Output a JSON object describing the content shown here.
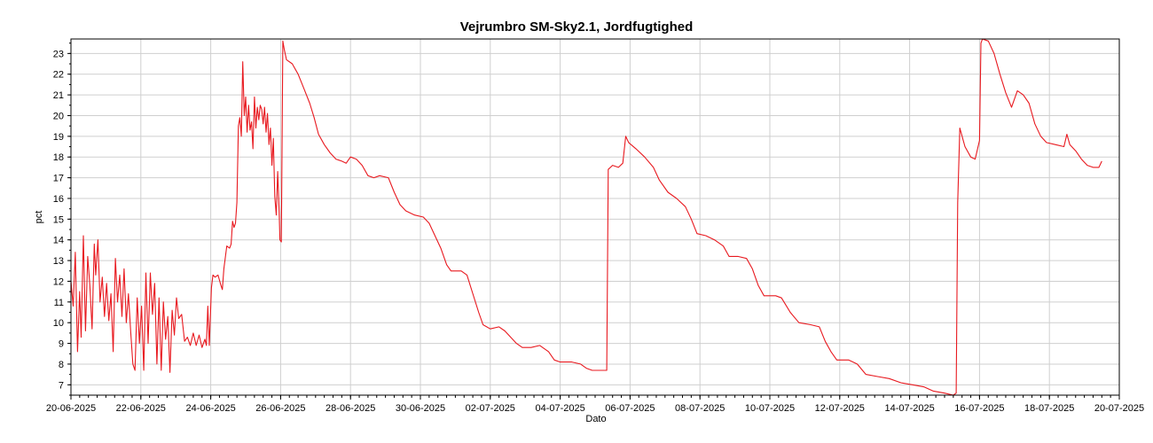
{
  "chart_data": {
    "type": "line",
    "title": "Vejrumbro SM-Sky2.1, Jordfugtighed",
    "xlabel": "Dato",
    "ylabel": "pct",
    "x_tick_labels": [
      "20-06-2025",
      "22-06-2025",
      "24-06-2025",
      "26-06-2025",
      "28-06-2025",
      "30-06-2025",
      "02-07-2025",
      "04-07-2025",
      "06-07-2025",
      "08-07-2025",
      "10-07-2025",
      "12-07-2025",
      "14-07-2025",
      "16-07-2025",
      "18-07-2025",
      "20-07-2025"
    ],
    "y_tick_labels": [
      "7",
      "8",
      "9",
      "10",
      "11",
      "12",
      "13",
      "14",
      "15",
      "16",
      "17",
      "18",
      "19",
      "20",
      "21",
      "22",
      "23"
    ],
    "xlim": [
      "2025-06-20",
      "2025-07-20"
    ],
    "ylim": [
      6.5,
      23.7
    ],
    "grid": true,
    "legend": "none",
    "color": "#e8191f",
    "series": [
      {
        "points": [
          [
            "2025-06-20 00:00",
            12.0
          ],
          [
            "2025-06-20 01:30",
            10.8
          ],
          [
            "2025-06-20 03:00",
            13.4
          ],
          [
            "2025-06-20 04:30",
            8.6
          ],
          [
            "2025-06-20 06:00",
            11.5
          ],
          [
            "2025-06-20 07:00",
            9.3
          ],
          [
            "2025-06-20 08:30",
            14.2
          ],
          [
            "2025-06-20 10:00",
            9.6
          ],
          [
            "2025-06-20 11:30",
            13.2
          ],
          [
            "2025-06-20 13:00",
            11.8
          ],
          [
            "2025-06-20 14:30",
            9.7
          ],
          [
            "2025-06-20 16:00",
            13.8
          ],
          [
            "2025-06-20 17:00",
            12.3
          ],
          [
            "2025-06-20 18:30",
            14.0
          ],
          [
            "2025-06-20 20:00",
            11.0
          ],
          [
            "2025-06-20 21:30",
            12.2
          ],
          [
            "2025-06-20 23:00",
            10.3
          ],
          [
            "2025-06-21 00:30",
            11.9
          ],
          [
            "2025-06-21 02:00",
            10.1
          ],
          [
            "2025-06-21 03:30",
            11.4
          ],
          [
            "2025-06-21 05:00",
            8.6
          ],
          [
            "2025-06-21 06:30",
            13.1
          ],
          [
            "2025-06-21 08:00",
            11.0
          ],
          [
            "2025-06-21 09:30",
            12.3
          ],
          [
            "2025-06-21 11:00",
            10.3
          ],
          [
            "2025-06-21 12:30",
            12.6
          ],
          [
            "2025-06-21 14:00",
            10.0
          ],
          [
            "2025-06-21 15:30",
            11.4
          ],
          [
            "2025-06-21 17:00",
            9.6
          ],
          [
            "2025-06-21 18:30",
            8.0
          ],
          [
            "2025-06-21 20:00",
            7.7
          ],
          [
            "2025-06-21 21:30",
            11.2
          ],
          [
            "2025-06-21 23:00",
            9.0
          ],
          [
            "2025-06-22 00:30",
            10.8
          ],
          [
            "2025-06-22 02:00",
            7.7
          ],
          [
            "2025-06-22 03:30",
            12.4
          ],
          [
            "2025-06-22 05:00",
            9.0
          ],
          [
            "2025-06-22 06:30",
            12.4
          ],
          [
            "2025-06-22 08:00",
            10.4
          ],
          [
            "2025-06-22 09:30",
            11.9
          ],
          [
            "2025-06-22 11:00",
            8.0
          ],
          [
            "2025-06-22 12:30",
            11.2
          ],
          [
            "2025-06-22 14:00",
            7.7
          ],
          [
            "2025-06-22 15:30",
            11.0
          ],
          [
            "2025-06-22 17:00",
            9.2
          ],
          [
            "2025-06-22 18:30",
            10.3
          ],
          [
            "2025-06-22 20:00",
            7.6
          ],
          [
            "2025-06-22 21:30",
            10.6
          ],
          [
            "2025-06-22 23:00",
            9.4
          ],
          [
            "2025-06-23 00:30",
            11.2
          ],
          [
            "2025-06-23 02:00",
            10.2
          ],
          [
            "2025-06-23 04:00",
            10.4
          ],
          [
            "2025-06-23 06:00",
            9.1
          ],
          [
            "2025-06-23 08:00",
            9.3
          ],
          [
            "2025-06-23 10:00",
            8.9
          ],
          [
            "2025-06-23 12:00",
            9.5
          ],
          [
            "2025-06-23 14:00",
            8.9
          ],
          [
            "2025-06-23 16:00",
            9.4
          ],
          [
            "2025-06-23 18:00",
            8.8
          ],
          [
            "2025-06-23 20:00",
            9.2
          ],
          [
            "2025-06-23 21:00",
            8.9
          ],
          [
            "2025-06-23 22:00",
            10.8
          ],
          [
            "2025-06-23 23:00",
            8.9
          ],
          [
            "2025-06-24 00:30",
            11.7
          ],
          [
            "2025-06-24 01:30",
            12.3
          ],
          [
            "2025-06-24 03:00",
            12.2
          ],
          [
            "2025-06-24 05:00",
            12.3
          ],
          [
            "2025-06-24 07:00",
            11.8
          ],
          [
            "2025-06-24 08:00",
            11.6
          ],
          [
            "2025-06-24 09:00",
            12.6
          ],
          [
            "2025-06-24 11:00",
            13.7
          ],
          [
            "2025-06-24 13:00",
            13.6
          ],
          [
            "2025-06-24 14:00",
            13.8
          ],
          [
            "2025-06-24 15:00",
            14.9
          ],
          [
            "2025-06-24 16:00",
            14.6
          ],
          [
            "2025-06-24 17:00",
            14.8
          ],
          [
            "2025-06-24 18:00",
            15.8
          ],
          [
            "2025-06-24 19:00",
            19.5
          ],
          [
            "2025-06-24 20:00",
            19.9
          ],
          [
            "2025-06-24 21:00",
            19.0
          ],
          [
            "2025-06-24 22:00",
            22.6
          ],
          [
            "2025-06-24 23:00",
            20.0
          ],
          [
            "2025-06-25 00:00",
            20.9
          ],
          [
            "2025-06-25 01:00",
            19.2
          ],
          [
            "2025-06-25 02:00",
            20.5
          ],
          [
            "2025-06-25 03:00",
            19.3
          ],
          [
            "2025-06-25 04:00",
            19.7
          ],
          [
            "2025-06-25 05:00",
            18.4
          ],
          [
            "2025-06-25 06:00",
            20.9
          ],
          [
            "2025-06-25 07:00",
            19.4
          ],
          [
            "2025-06-25 08:00",
            20.4
          ],
          [
            "2025-06-25 09:00",
            19.8
          ],
          [
            "2025-06-25 10:00",
            20.5
          ],
          [
            "2025-06-25 11:00",
            20.3
          ],
          [
            "2025-06-25 12:00",
            19.6
          ],
          [
            "2025-06-25 13:00",
            20.4
          ],
          [
            "2025-06-25 14:00",
            19.2
          ],
          [
            "2025-06-25 15:00",
            20.1
          ],
          [
            "2025-06-25 16:00",
            18.6
          ],
          [
            "2025-06-25 17:00",
            19.4
          ],
          [
            "2025-06-25 18:00",
            17.6
          ],
          [
            "2025-06-25 19:00",
            18.9
          ],
          [
            "2025-06-25 20:00",
            16.1
          ],
          [
            "2025-06-25 21:00",
            15.2
          ],
          [
            "2025-06-25 22:00",
            17.3
          ],
          [
            "2025-06-25 23:00",
            15.3
          ],
          [
            "2025-06-25 23:30",
            14.0
          ],
          [
            "2025-06-26 00:30",
            13.9
          ],
          [
            "2025-06-26 01:30",
            23.6
          ],
          [
            "2025-06-26 02:30",
            23.2
          ],
          [
            "2025-06-26 04:00",
            22.7
          ],
          [
            "2025-06-26 08:00",
            22.5
          ],
          [
            "2025-06-26 12:00",
            22.0
          ],
          [
            "2025-06-26 16:00",
            21.3
          ],
          [
            "2025-06-26 20:00",
            20.6
          ],
          [
            "2025-06-26 23:00",
            19.9
          ],
          [
            "2025-06-27 02:00",
            19.1
          ],
          [
            "2025-06-27 06:00",
            18.6
          ],
          [
            "2025-06-27 10:00",
            18.2
          ],
          [
            "2025-06-27 14:00",
            17.9
          ],
          [
            "2025-06-27 18:00",
            17.8
          ],
          [
            "2025-06-27 21:00",
            17.7
          ],
          [
            "2025-06-28 00:00",
            18.0
          ],
          [
            "2025-06-28 04:00",
            17.9
          ],
          [
            "2025-06-28 08:00",
            17.6
          ],
          [
            "2025-06-28 12:00",
            17.1
          ],
          [
            "2025-06-28 16:00",
            17.0
          ],
          [
            "2025-06-28 20:00",
            17.1
          ],
          [
            "2025-06-29 02:00",
            17.0
          ],
          [
            "2025-06-29 06:00",
            16.3
          ],
          [
            "2025-06-29 10:00",
            15.7
          ],
          [
            "2025-06-29 14:00",
            15.4
          ],
          [
            "2025-06-29 20:00",
            15.2
          ],
          [
            "2025-06-30 02:00",
            15.1
          ],
          [
            "2025-06-30 06:00",
            14.8
          ],
          [
            "2025-06-30 10:00",
            14.2
          ],
          [
            "2025-06-30 14:00",
            13.6
          ],
          [
            "2025-06-30 18:00",
            12.8
          ],
          [
            "2025-06-30 21:00",
            12.5
          ],
          [
            "2025-07-01 04:00",
            12.5
          ],
          [
            "2025-07-01 08:00",
            12.3
          ],
          [
            "2025-07-01 12:00",
            11.4
          ],
          [
            "2025-07-01 16:00",
            10.5
          ],
          [
            "2025-07-01 19:00",
            9.9
          ],
          [
            "2025-07-02 00:00",
            9.7
          ],
          [
            "2025-07-02 06:00",
            9.8
          ],
          [
            "2025-07-02 10:00",
            9.6
          ],
          [
            "2025-07-02 14:00",
            9.3
          ],
          [
            "2025-07-02 18:00",
            9.0
          ],
          [
            "2025-07-02 22:00",
            8.8
          ],
          [
            "2025-07-03 04:00",
            8.8
          ],
          [
            "2025-07-03 10:00",
            8.9
          ],
          [
            "2025-07-03 16:00",
            8.6
          ],
          [
            "2025-07-03 20:00",
            8.2
          ],
          [
            "2025-07-04 00:00",
            8.1
          ],
          [
            "2025-07-04 08:00",
            8.1
          ],
          [
            "2025-07-04 14:00",
            8.0
          ],
          [
            "2025-07-04 18:00",
            7.8
          ],
          [
            "2025-07-04 22:00",
            7.7
          ],
          [
            "2025-07-05 08:00",
            7.7
          ],
          [
            "2025-07-05 09:00",
            17.4
          ],
          [
            "2025-07-05 12:00",
            17.6
          ],
          [
            "2025-07-05 16:00",
            17.5
          ],
          [
            "2025-07-05 19:00",
            17.7
          ],
          [
            "2025-07-05 21:00",
            19.0
          ],
          [
            "2025-07-05 23:00",
            18.7
          ],
          [
            "2025-07-06 04:00",
            18.4
          ],
          [
            "2025-07-06 10:00",
            18.0
          ],
          [
            "2025-07-06 16:00",
            17.5
          ],
          [
            "2025-07-06 20:00",
            16.9
          ],
          [
            "2025-07-07 02:00",
            16.3
          ],
          [
            "2025-07-07 08:00",
            16.0
          ],
          [
            "2025-07-07 14:00",
            15.6
          ],
          [
            "2025-07-07 18:00",
            15.0
          ],
          [
            "2025-07-07 22:00",
            14.3
          ],
          [
            "2025-07-08 04:00",
            14.2
          ],
          [
            "2025-07-08 10:00",
            14.0
          ],
          [
            "2025-07-08 16:00",
            13.7
          ],
          [
            "2025-07-08 20:00",
            13.2
          ],
          [
            "2025-07-09 02:00",
            13.2
          ],
          [
            "2025-07-09 08:00",
            13.1
          ],
          [
            "2025-07-09 12:00",
            12.6
          ],
          [
            "2025-07-09 16:00",
            11.8
          ],
          [
            "2025-07-09 20:00",
            11.3
          ],
          [
            "2025-07-10 04:00",
            11.3
          ],
          [
            "2025-07-10 08:00",
            11.2
          ],
          [
            "2025-07-10 14:00",
            10.5
          ],
          [
            "2025-07-10 20:00",
            10.0
          ],
          [
            "2025-07-11 04:00",
            9.9
          ],
          [
            "2025-07-11 10:00",
            9.8
          ],
          [
            "2025-07-11 14:00",
            9.1
          ],
          [
            "2025-07-11 18:00",
            8.6
          ],
          [
            "2025-07-11 22:00",
            8.2
          ],
          [
            "2025-07-12 06:00",
            8.2
          ],
          [
            "2025-07-12 12:00",
            8.0
          ],
          [
            "2025-07-12 18:00",
            7.5
          ],
          [
            "2025-07-13 02:00",
            7.4
          ],
          [
            "2025-07-13 10:00",
            7.3
          ],
          [
            "2025-07-13 18:00",
            7.1
          ],
          [
            "2025-07-14 02:00",
            7.0
          ],
          [
            "2025-07-14 10:00",
            6.9
          ],
          [
            "2025-07-14 16:00",
            6.7
          ],
          [
            "2025-07-15 00:00",
            6.6
          ],
          [
            "2025-07-15 06:00",
            6.5
          ],
          [
            "2025-07-15 08:00",
            6.6
          ],
          [
            "2025-07-15 09:00",
            15.8
          ],
          [
            "2025-07-15 10:30",
            19.4
          ],
          [
            "2025-07-15 14:00",
            18.5
          ],
          [
            "2025-07-15 18:00",
            18.0
          ],
          [
            "2025-07-15 21:00",
            17.9
          ],
          [
            "2025-07-16 00:00",
            18.8
          ],
          [
            "2025-07-16 01:00",
            23.5
          ],
          [
            "2025-07-16 02:00",
            23.7
          ],
          [
            "2025-07-16 06:00",
            23.6
          ],
          [
            "2025-07-16 10:00",
            23.0
          ],
          [
            "2025-07-16 14:00",
            22.0
          ],
          [
            "2025-07-16 18:00",
            21.1
          ],
          [
            "2025-07-16 22:00",
            20.4
          ],
          [
            "2025-07-17 02:00",
            21.2
          ],
          [
            "2025-07-17 06:00",
            21.0
          ],
          [
            "2025-07-17 10:00",
            20.6
          ],
          [
            "2025-07-17 14:00",
            19.6
          ],
          [
            "2025-07-17 18:00",
            19.0
          ],
          [
            "2025-07-17 22:00",
            18.7
          ],
          [
            "2025-07-18 04:00",
            18.6
          ],
          [
            "2025-07-18 10:00",
            18.5
          ],
          [
            "2025-07-18 12:00",
            19.1
          ],
          [
            "2025-07-18 14:00",
            18.6
          ],
          [
            "2025-07-18 18:00",
            18.3
          ],
          [
            "2025-07-18 22:00",
            17.9
          ],
          [
            "2025-07-19 02:00",
            17.6
          ],
          [
            "2025-07-19 06:00",
            17.5
          ],
          [
            "2025-07-19 10:00",
            17.5
          ],
          [
            "2025-07-19 12:00",
            17.8
          ]
        ]
      }
    ]
  }
}
